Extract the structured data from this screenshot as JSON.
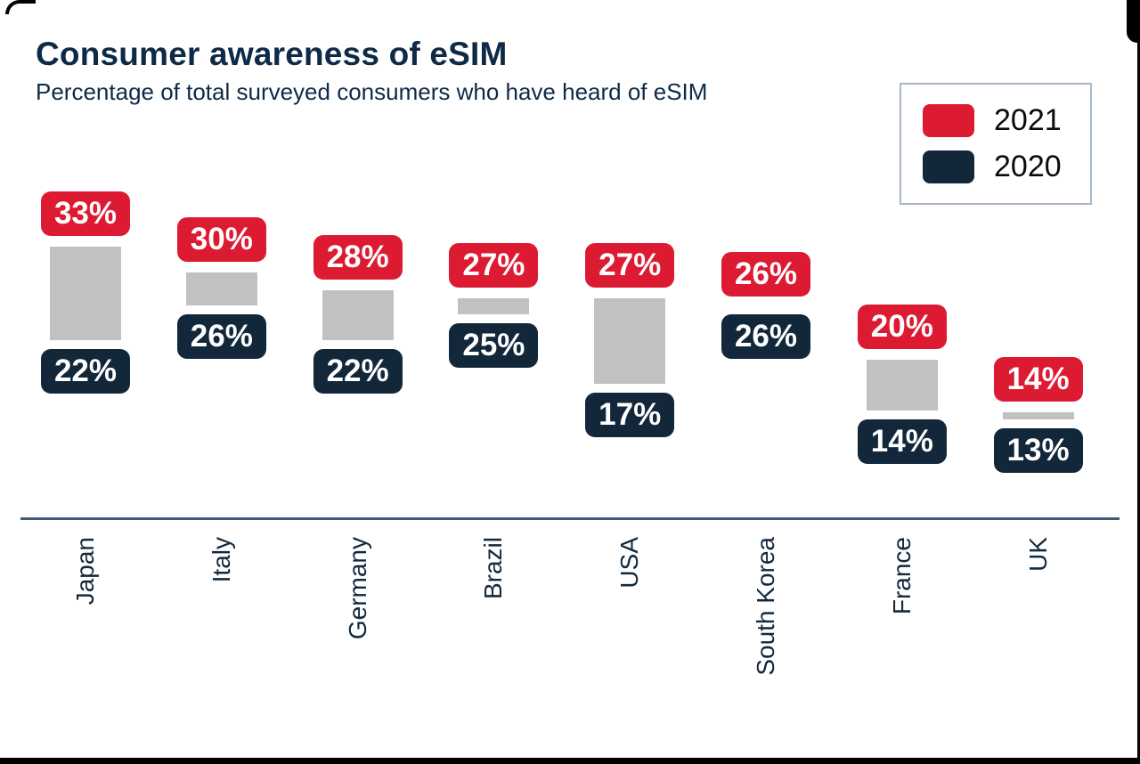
{
  "title": "Consumer awareness of eSIM",
  "subtitle": "Percentage of total surveyed consumers who have heard of eSIM",
  "legend": {
    "items": [
      {
        "label": "2021",
        "color": "#dc1b32"
      },
      {
        "label": "2020",
        "color": "#12273a"
      }
    ]
  },
  "colors": {
    "red": "#dc1b32",
    "navy": "#12273a",
    "connector_gray": "#c1c1c1",
    "axis": "#3e5c78",
    "heading_text": "#0e2a47",
    "country_label_text": "#13293e",
    "badge_text": "#ffffff"
  },
  "chart_data": {
    "type": "bar",
    "title": "Consumer awareness of eSIM",
    "subtitle": "Percentage of total surveyed consumers who have heard of eSIM",
    "categories": [
      "Japan",
      "Italy",
      "Germany",
      "Brazil",
      "USA",
      "South Korea",
      "France",
      "UK"
    ],
    "series": [
      {
        "name": "2021",
        "color": "#dc1b32",
        "values": [
          33,
          30,
          28,
          27,
          27,
          26,
          20,
          14
        ]
      },
      {
        "name": "2020",
        "color": "#12273a",
        "values": [
          22,
          26,
          22,
          25,
          17,
          26,
          14,
          13
        ]
      }
    ],
    "value_suffix": "%",
    "value_range": [
      13,
      33
    ],
    "legend_position": "top-right",
    "grid": false,
    "x_axis_line": true,
    "category_label_rotation": -90
  }
}
